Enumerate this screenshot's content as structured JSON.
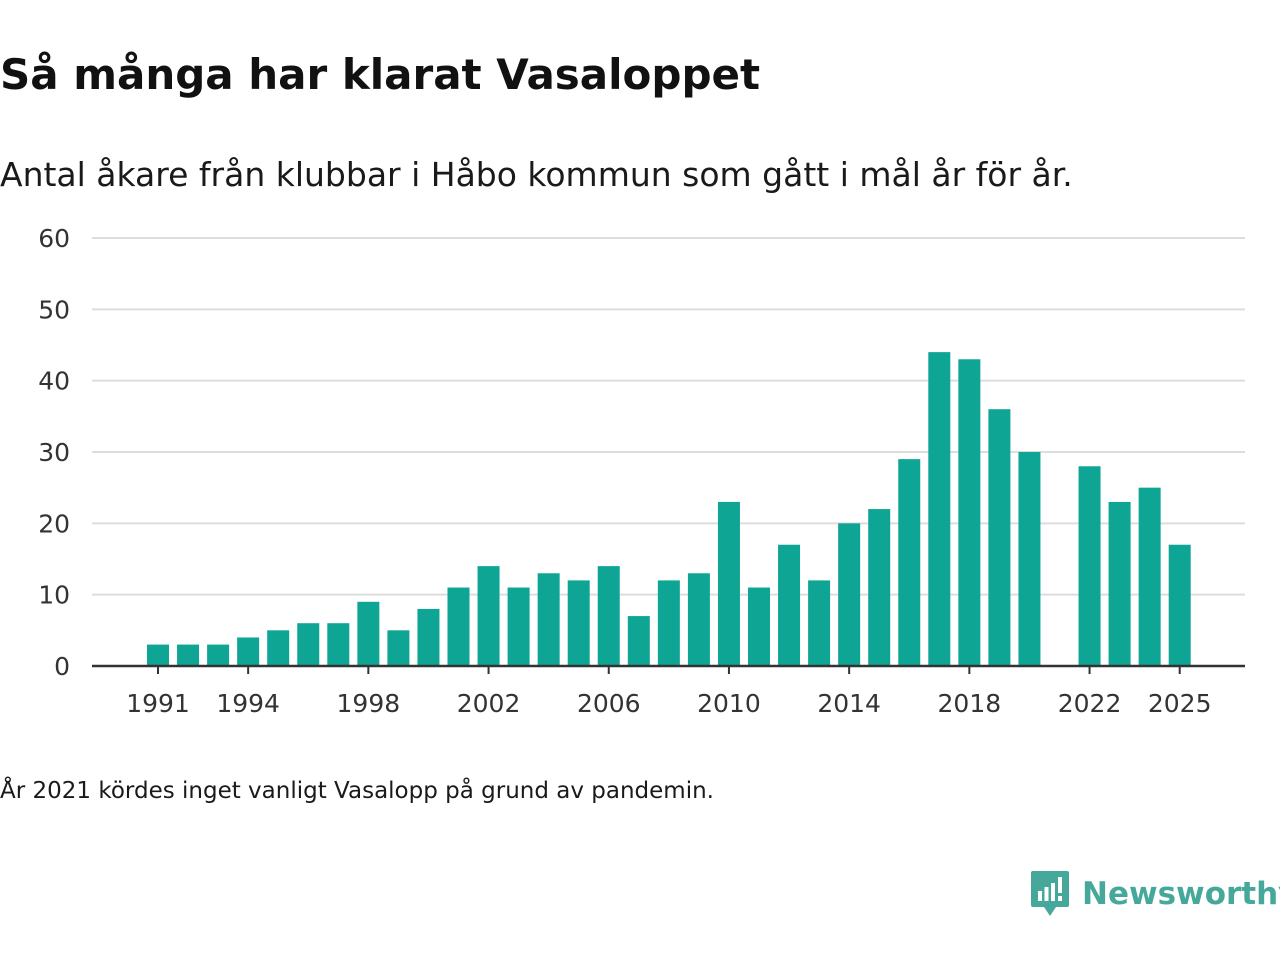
{
  "title": "Så många har klarat Vasaloppet",
  "subtitle": "Antal åkare från klubbar i Håbo kommun som gått i mål år för år.",
  "footnote": "År 2021 kördes inget vanligt Vasalopp på grund av pandemin.",
  "brand": {
    "name": "Newsworthy",
    "icon": "newsworthy-logo-icon",
    "color": "#45a89a"
  },
  "colors": {
    "bar": "#0ea595",
    "grid": "#dddddd",
    "axis": "#333333",
    "text": "#333333"
  },
  "chart_data": {
    "type": "bar",
    "title": "Så många har klarat Vasaloppet",
    "xlabel": "",
    "ylabel": "",
    "ylim": [
      0,
      60
    ],
    "yticks": [
      0,
      10,
      20,
      30,
      40,
      50,
      60
    ],
    "xticks": [
      1991,
      1994,
      1998,
      2002,
      2006,
      2010,
      2014,
      2018,
      2022,
      2025
    ],
    "grid": true,
    "categories": [
      1991,
      1992,
      1993,
      1994,
      1995,
      1996,
      1997,
      1998,
      1999,
      2000,
      2001,
      2002,
      2003,
      2004,
      2005,
      2006,
      2007,
      2008,
      2009,
      2010,
      2011,
      2012,
      2013,
      2014,
      2015,
      2016,
      2017,
      2018,
      2019,
      2020,
      2021,
      2022,
      2023,
      2024,
      2025
    ],
    "values": [
      3,
      3,
      3,
      4,
      5,
      6,
      6,
      9,
      5,
      8,
      11,
      14,
      11,
      13,
      12,
      14,
      7,
      12,
      13,
      23,
      11,
      17,
      12,
      20,
      22,
      29,
      44,
      43,
      36,
      30,
      null,
      28,
      23,
      25,
      17
    ]
  }
}
